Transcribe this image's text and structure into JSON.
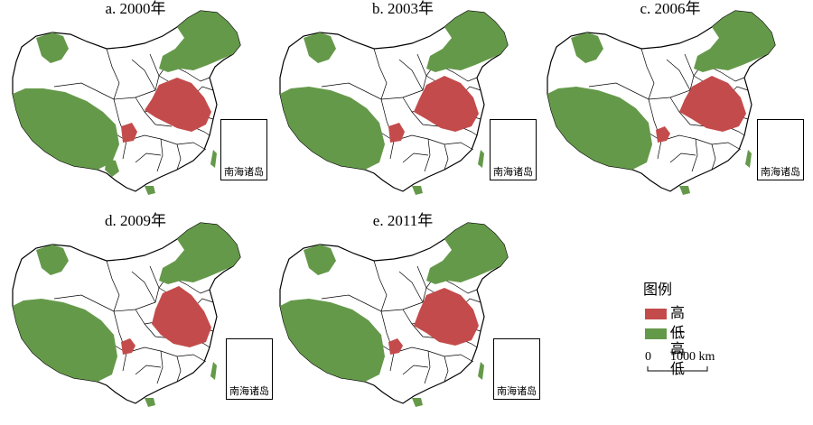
{
  "panels": [
    {
      "title": "a. 2000年",
      "variant": 0
    },
    {
      "title": "b. 2003年",
      "variant": 1
    },
    {
      "title": "c. 2006年",
      "variant": 2
    },
    {
      "title": "d. 2009年",
      "variant": 3
    },
    {
      "title": "e. 2011年",
      "variant": 4
    }
  ],
  "inset_label": "南海诸岛",
  "legend": {
    "title": "图例",
    "items": [
      {
        "label": "高—高",
        "color": "#c44b4b"
      },
      {
        "label": "低—低",
        "color": "#65994a"
      }
    ]
  },
  "scale_bar": {
    "zero": "0",
    "max": "1000 km"
  },
  "colors": {
    "high_high": "#c44b4b",
    "low_low": "#65994a",
    "border": "#000000",
    "background": "#ffffff"
  }
}
